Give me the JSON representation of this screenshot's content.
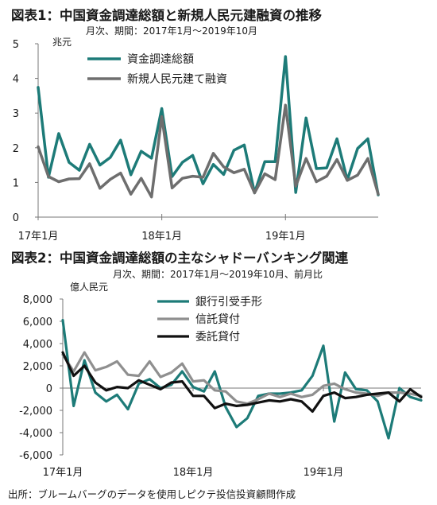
{
  "charts": [
    {
      "title": "図表1：中国資金調達総額と新規人民元建融資の推移",
      "subtitle": "月次、期間：2017年1月～2019年10月",
      "unit": "兆元"
    },
    {
      "title": "図表2：中国資金調達総額の主なシャドーバンキング関連",
      "subtitle": "月次、期間：2017年1月～2019年10月、前月比",
      "unit": "億人民元"
    }
  ],
  "source": "出所：ブルームバーグのデータを使用しピクテ投信投資顧問作成",
  "chart_data": [
    {
      "type": "line",
      "title": "図表1：中国資金調達総額と新規人民元建融資の推移",
      "subtitle": "月次、期間：2017年1月～2019年10月",
      "ylabel": "兆元",
      "ylim": [
        0,
        5
      ],
      "yticks": [
        "0",
        "1",
        "2",
        "3",
        "4",
        "5"
      ],
      "xticks": [
        {
          "label": "17年1月",
          "index": 0
        },
        {
          "label": "18年1月",
          "index": 12
        },
        {
          "label": "19年1月",
          "index": 24
        }
      ],
      "n_points": 34,
      "legend_position": "top-left",
      "grid": false,
      "series": [
        {
          "name": "資金調達総額",
          "color": "#1d7b78",
          "values": [
            3.74,
            1.15,
            2.41,
            1.58,
            1.35,
            2.1,
            1.5,
            1.72,
            2.22,
            1.22,
            1.9,
            1.7,
            3.13,
            1.17,
            1.58,
            1.78,
            0.96,
            1.52,
            1.23,
            1.93,
            2.08,
            0.7,
            1.6,
            1.6,
            4.63,
            0.71,
            2.86,
            1.4,
            1.42,
            2.26,
            1.07,
            1.98,
            2.26,
            0.64
          ]
        },
        {
          "name": "新規人民元建て融資",
          "color": "#6e6e6e",
          "values": [
            2.03,
            1.17,
            1.02,
            1.1,
            1.11,
            1.54,
            0.83,
            1.09,
            1.27,
            0.66,
            1.12,
            0.58,
            2.9,
            0.84,
            1.12,
            1.18,
            1.15,
            1.84,
            1.45,
            1.28,
            1.38,
            0.7,
            1.25,
            1.08,
            3.23,
            0.89,
            1.69,
            1.02,
            1.18,
            1.66,
            1.06,
            1.21,
            1.69,
            0.66
          ]
        }
      ]
    },
    {
      "type": "line",
      "title": "図表2：中国資金調達総額の主なシャドーバンキング関連",
      "subtitle": "月次、期間：2017年1月～2019年10月、前月比",
      "ylabel": "億人民元",
      "ylim": [
        -6000,
        8000
      ],
      "yticks": [
        "-6,000",
        "-4,000",
        "-2,000",
        "0",
        "2,000",
        "4,000",
        "6,000",
        "8,000"
      ],
      "xticks": [
        {
          "label": "17年1月",
          "index": 0
        },
        {
          "label": "18年1月",
          "index": 12
        },
        {
          "label": "19年1月",
          "index": 24
        }
      ],
      "n_points": 34,
      "legend_position": "top-center",
      "grid": false,
      "series": [
        {
          "name": "銀行引受手形",
          "color": "#1d7b78",
          "values": [
            6100,
            -1600,
            2500,
            -400,
            -1200,
            -600,
            -1900,
            400,
            800,
            0,
            300,
            1500,
            100,
            -300,
            1500,
            -1700,
            -3500,
            -2700,
            -700,
            -500,
            -500,
            -400,
            -200,
            1100,
            3800,
            -3000,
            1400,
            -100,
            -200,
            -1200,
            -4500,
            0,
            -800,
            -1100
          ]
        },
        {
          "name": "信託貸付",
          "color": "#8f8f8f",
          "values": [
            3000,
            1500,
            3200,
            1600,
            1900,
            2400,
            1200,
            1100,
            2400,
            1000,
            1400,
            2200,
            600,
            700,
            -200,
            -300,
            -1200,
            -1400,
            -1000,
            -500,
            -800,
            -500,
            -800,
            -600,
            200,
            400,
            -100,
            -400,
            -500,
            -700,
            -400,
            -400,
            -500,
            -700
          ]
        },
        {
          "name": "委託貸付",
          "color": "#111111",
          "values": [
            3200,
            1100,
            2000,
            500,
            -200,
            100,
            0,
            700,
            300,
            -100,
            500,
            600,
            -700,
            -700,
            -1800,
            -1400,
            -1600,
            -1500,
            -1300,
            -1100,
            -1200,
            -1000,
            -1200,
            -2100,
            -700,
            -400,
            -900,
            -800,
            -600,
            -500,
            -400,
            -1200,
            -100,
            -800
          ]
        }
      ]
    }
  ]
}
